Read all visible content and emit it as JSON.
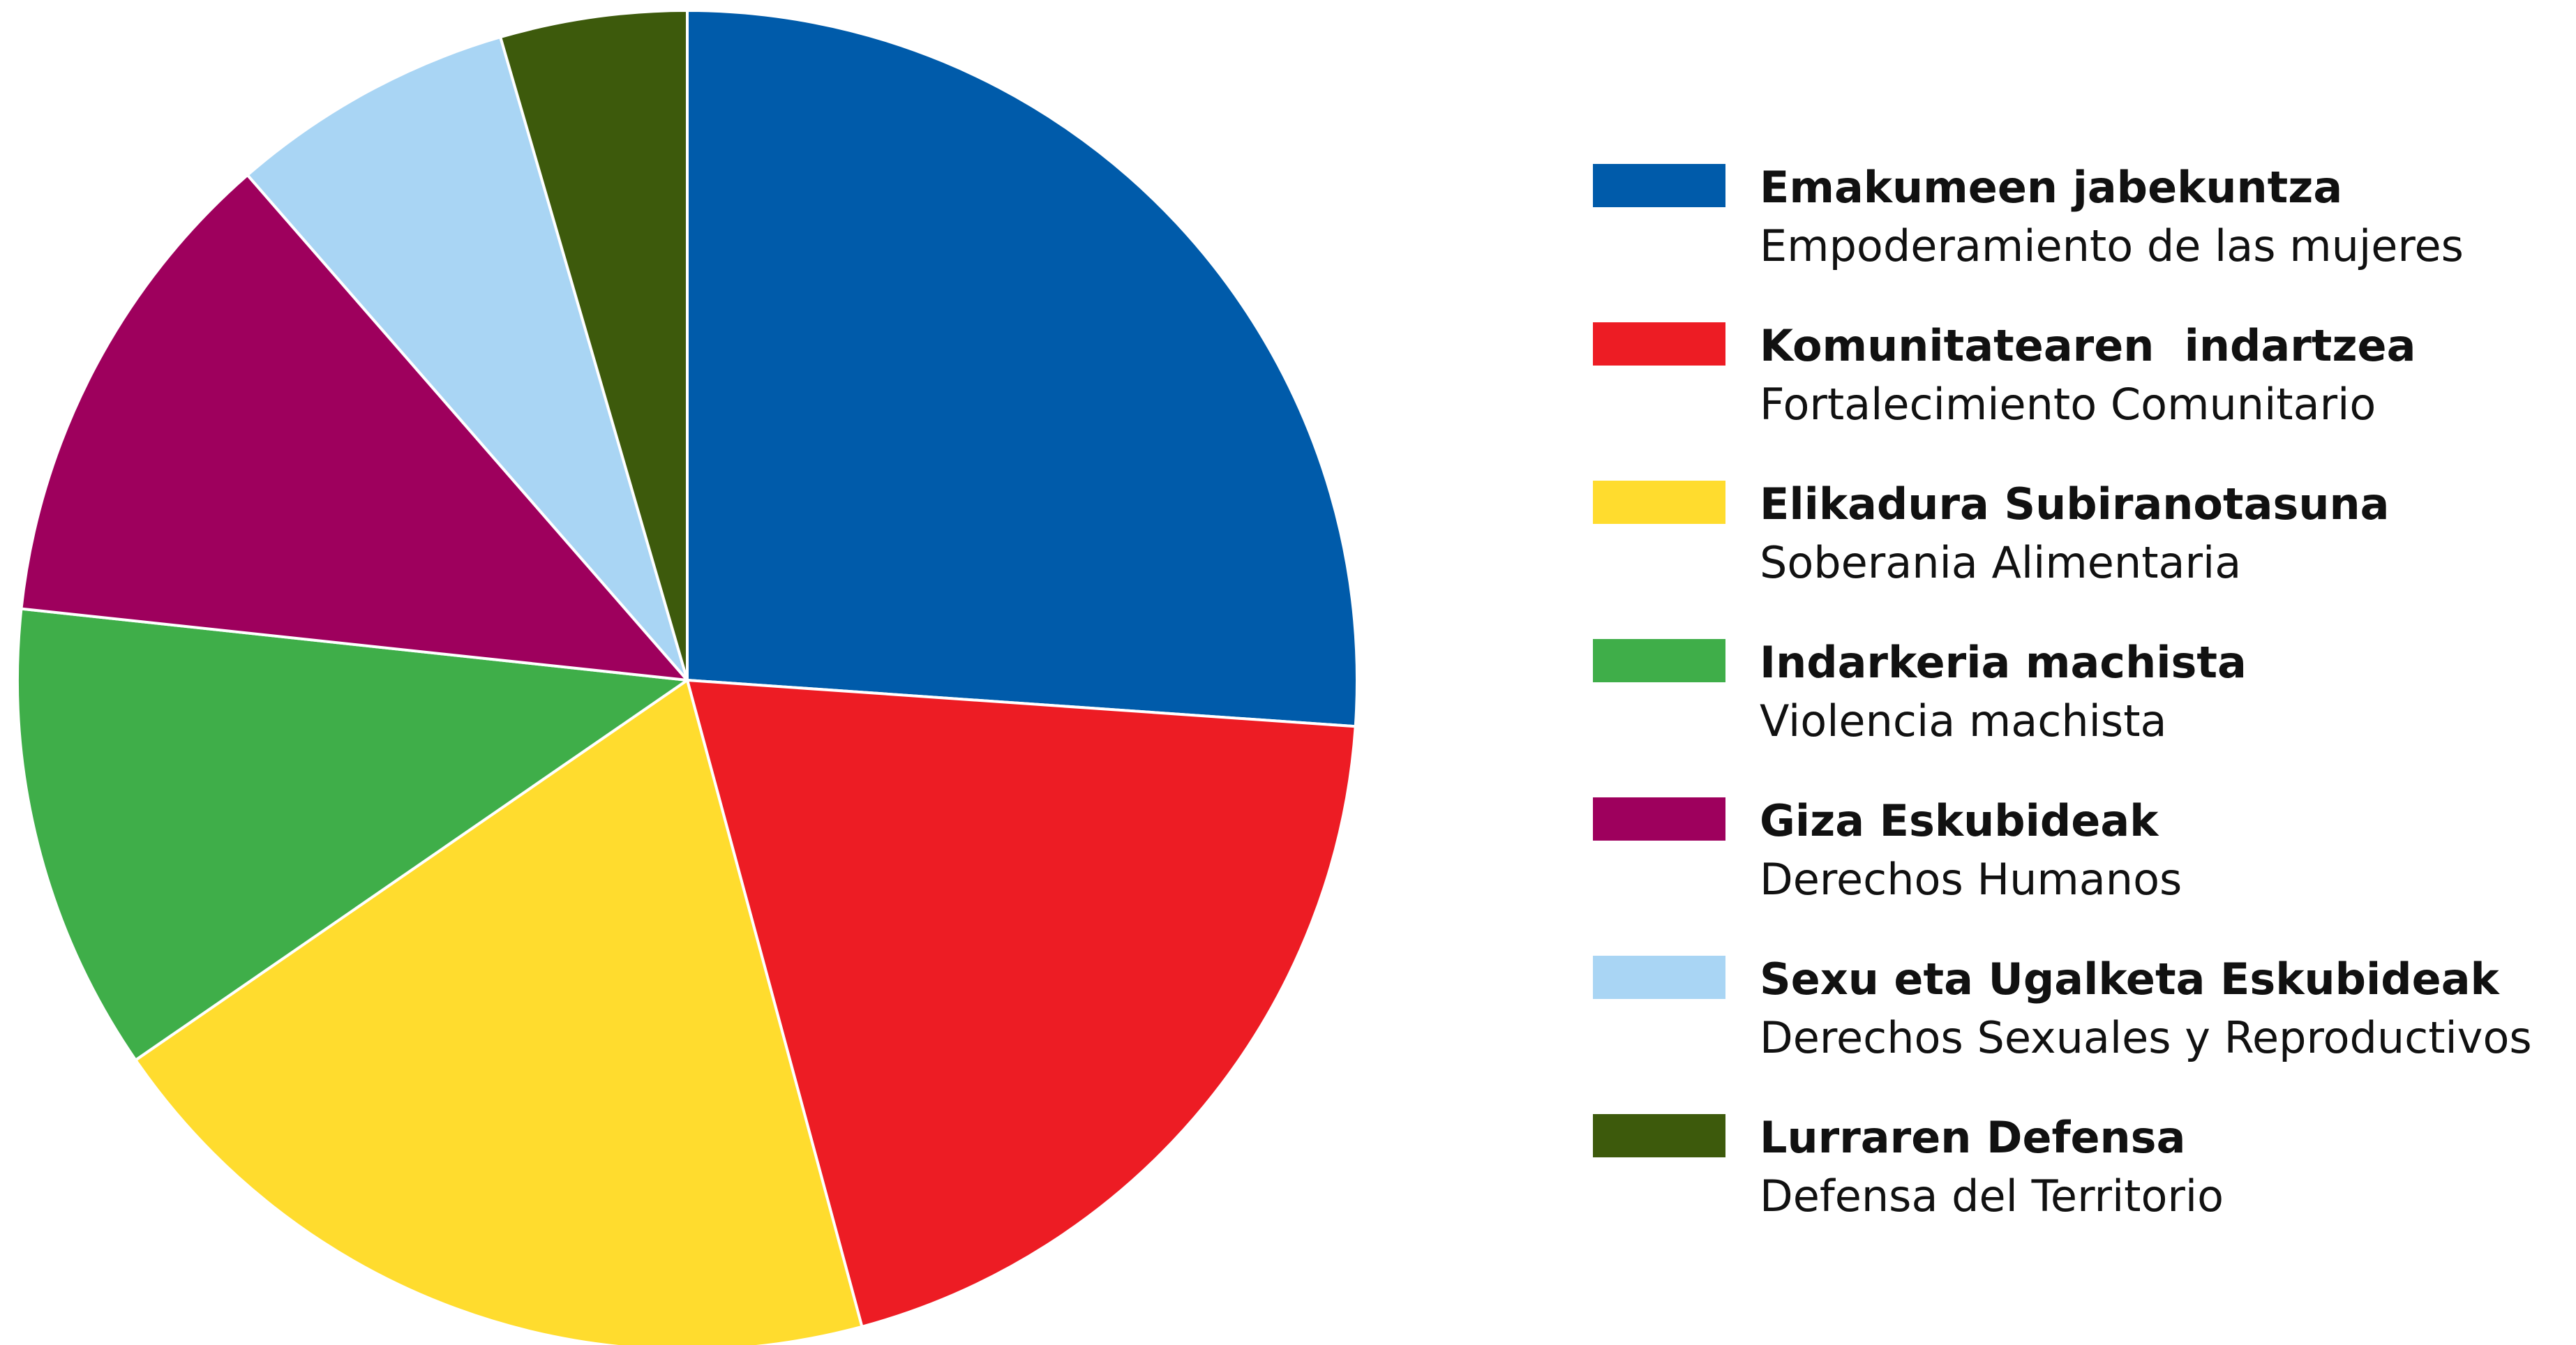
{
  "chart_data": {
    "type": "pie",
    "title": "",
    "start": "top",
    "direction": "clockwise",
    "series": [
      {
        "name": "Emakumeen jabekuntza",
        "subtitle": "Empoderamiento de las mujeres",
        "value": 26.1,
        "color": "#005BAA"
      },
      {
        "name": "Komunitatearen  indartzea",
        "subtitle": "Fortalecimiento Comunitario",
        "value": 19.7,
        "color": "#ED1C24"
      },
      {
        "name": "Elikadura Subiranotasuna",
        "subtitle": "Soberania Alimentaria",
        "value": 19.6,
        "color": "#FFDC2E"
      },
      {
        "name": "Indarkeria machista",
        "subtitle": "Violencia machista",
        "value": 11.3,
        "color": "#3FAE49"
      },
      {
        "name": "Giza Eskubideak",
        "subtitle": "Derechos Humanos",
        "value": 11.9,
        "color": "#9E005D"
      },
      {
        "name": "Sexu eta Ugalketa Eskubideak",
        "subtitle": "Derechos Sexuales y Reproductivos",
        "value": 6.9,
        "color": "#A9D5F4"
      },
      {
        "name": "Lurraren Defensa",
        "subtitle": "Defensa del Territorio",
        "value": 4.5,
        "color": "#3D5A0C"
      }
    ],
    "legend": "right"
  }
}
